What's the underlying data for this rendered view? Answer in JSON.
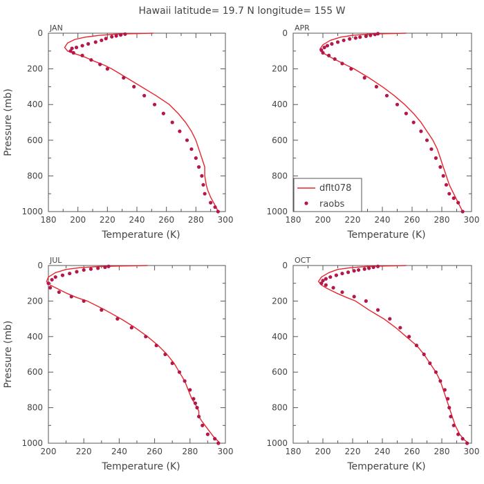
{
  "figure": {
    "title": "Hawaii  latitude= 19.7 N longitude= 155 W"
  },
  "colors": {
    "model_line": "#e8232a",
    "obs_points": "#b5174b",
    "axis": "#555555",
    "text": "#444444"
  },
  "legend": {
    "placement": "lower-left of APR panel",
    "entries": [
      "dflt078",
      "raobs"
    ]
  },
  "chart_data": [
    {
      "type": "line",
      "panel": "JAN",
      "title": "JAN",
      "xlabel": "Temperature (K)",
      "ylabel": "Pressure (mb)",
      "xlim": [
        180,
        300
      ],
      "ylim": [
        1000,
        0
      ],
      "y_inverted": true,
      "xticks": [
        180,
        200,
        220,
        240,
        260,
        280,
        300
      ],
      "yticks": [
        0,
        200,
        400,
        600,
        800,
        1000
      ],
      "grid": false,
      "series": [
        {
          "name": "dflt078",
          "style": "line",
          "x": [
            251,
            235,
            225,
            215,
            205,
            198,
            193,
            191,
            193,
            198,
            205,
            212,
            218,
            223,
            233,
            243,
            253,
            262,
            268,
            273,
            277,
            280,
            282,
            284,
            286,
            286,
            287,
            288,
            290,
            292,
            294,
            295
          ],
          "y": [
            0,
            3,
            6,
            12,
            22,
            35,
            55,
            80,
            100,
            115,
            135,
            160,
            180,
            200,
            250,
            300,
            350,
            400,
            450,
            500,
            550,
            600,
            650,
            700,
            750,
            800,
            850,
            880,
            920,
            950,
            980,
            1000
          ]
        },
        {
          "name": "raobs",
          "style": "scatter",
          "x": [
            232,
            229,
            226,
            223,
            219,
            216,
            212,
            207,
            203,
            199,
            196,
            195,
            197,
            203,
            209,
            215,
            220,
            231,
            238,
            245,
            252,
            258,
            264,
            269,
            274,
            277,
            280,
            282,
            284,
            285,
            286,
            290,
            293,
            295
          ],
          "y": [
            5,
            10,
            15,
            20,
            30,
            40,
            50,
            60,
            70,
            80,
            85,
            100,
            110,
            125,
            150,
            175,
            200,
            250,
            300,
            350,
            400,
            450,
            500,
            550,
            600,
            650,
            700,
            750,
            800,
            850,
            900,
            950,
            975,
            1000
          ]
        }
      ]
    },
    {
      "type": "line",
      "panel": "APR",
      "title": "APR",
      "xlabel": "Temperature (K)",
      "ylabel": "",
      "xlim": [
        180,
        300
      ],
      "ylim": [
        1000,
        0
      ],
      "y_inverted": true,
      "xticks": [
        180,
        200,
        220,
        240,
        260,
        280,
        300
      ],
      "yticks": [
        0,
        200,
        400,
        600,
        800,
        1000
      ],
      "grid": false,
      "series": [
        {
          "name": "dflt078",
          "style": "line",
          "x": [
            256,
            240,
            230,
            220,
            212,
            205,
            200,
            198,
            200,
            204,
            210,
            216,
            221,
            231,
            240,
            248,
            255,
            261,
            266,
            270,
            274,
            277,
            279,
            281,
            283,
            285,
            288,
            291,
            294
          ],
          "y": [
            0,
            3,
            6,
            12,
            22,
            40,
            65,
            90,
            110,
            130,
            155,
            180,
            200,
            250,
            300,
            350,
            400,
            450,
            500,
            550,
            600,
            650,
            700,
            750,
            800,
            850,
            900,
            950,
            1000
          ]
        },
        {
          "name": "raobs",
          "style": "scatter",
          "x": [
            237,
            235,
            232,
            229,
            225,
            222,
            218,
            214,
            210,
            206,
            203,
            201,
            199,
            200,
            204,
            208,
            213,
            219,
            228,
            236,
            243,
            250,
            256,
            261,
            266,
            270,
            273,
            276,
            279,
            281,
            283,
            285,
            288,
            291,
            294
          ],
          "y": [
            3,
            7,
            12,
            17,
            22,
            27,
            32,
            40,
            50,
            60,
            70,
            80,
            95,
            110,
            125,
            145,
            170,
            200,
            250,
            300,
            350,
            400,
            450,
            500,
            550,
            600,
            650,
            700,
            750,
            800,
            850,
            900,
            925,
            950,
            1000
          ]
        }
      ]
    },
    {
      "type": "line",
      "panel": "JUL",
      "title": "JUL",
      "xlabel": "Temperature (K)",
      "ylabel": "Pressure (mb)",
      "xlim": [
        200,
        300
      ],
      "ylim": [
        1000,
        0
      ],
      "y_inverted": true,
      "xticks": [
        200,
        220,
        240,
        260,
        280,
        300
      ],
      "yticks": [
        0,
        200,
        400,
        600,
        800,
        1000
      ],
      "grid": false,
      "series": [
        {
          "name": "dflt078",
          "style": "line",
          "x": [
            256,
            240,
            228,
            218,
            210,
            204,
            200,
            199,
            201,
            205,
            210,
            216,
            222,
            232,
            241,
            249,
            256,
            262,
            267,
            271,
            274,
            277,
            279,
            281,
            283,
            284,
            285,
            285,
            287,
            290,
            293,
            297
          ],
          "y": [
            0,
            3,
            6,
            12,
            22,
            40,
            65,
            90,
            110,
            130,
            155,
            180,
            200,
            250,
            300,
            350,
            400,
            450,
            500,
            550,
            600,
            650,
            700,
            750,
            780,
            800,
            820,
            850,
            880,
            920,
            960,
            1000
          ]
        },
        {
          "name": "raobs",
          "style": "scatter",
          "x": [
            234,
            232,
            228,
            224,
            220,
            216,
            212,
            208,
            204,
            202,
            200,
            201,
            206,
            213,
            220,
            230,
            239,
            247,
            255,
            261,
            266,
            270,
            274,
            277,
            280,
            282,
            283,
            284,
            285,
            287,
            290,
            294,
            296
          ],
          "y": [
            5,
            10,
            15,
            20,
            25,
            35,
            45,
            55,
            65,
            80,
            100,
            125,
            150,
            175,
            200,
            250,
            300,
            350,
            400,
            450,
            500,
            550,
            600,
            650,
            700,
            750,
            775,
            800,
            850,
            900,
            950,
            975,
            1000
          ]
        }
      ]
    },
    {
      "type": "line",
      "panel": "OCT",
      "title": "OCT",
      "xlabel": "Temperature (K)",
      "ylabel": "",
      "xlim": [
        180,
        300
      ],
      "ylim": [
        1000,
        0
      ],
      "y_inverted": true,
      "xticks": [
        180,
        200,
        220,
        240,
        260,
        280,
        300
      ],
      "yticks": [
        0,
        200,
        400,
        600,
        800,
        1000
      ],
      "grid": false,
      "series": [
        {
          "name": "dflt078",
          "style": "line",
          "x": [
            256,
            240,
            229,
            219,
            210,
            204,
            199,
            197,
            199,
            203,
            209,
            216,
            222,
            231,
            241,
            249,
            256,
            263,
            268,
            272,
            276,
            279,
            281,
            283,
            285,
            287,
            289,
            292,
            295,
            298
          ],
          "y": [
            0,
            3,
            6,
            12,
            22,
            40,
            65,
            90,
            110,
            130,
            155,
            180,
            200,
            250,
            300,
            350,
            400,
            450,
            500,
            550,
            600,
            650,
            700,
            750,
            800,
            850,
            900,
            950,
            980,
            1000
          ]
        },
        {
          "name": "raobs",
          "style": "scatter",
          "x": [
            237,
            234,
            231,
            228,
            224,
            221,
            217,
            213,
            209,
            205,
            202,
            200,
            199,
            202,
            207,
            213,
            221,
            229,
            237,
            245,
            252,
            258,
            263,
            268,
            272,
            276,
            279,
            282,
            284,
            285,
            286,
            288,
            291,
            294,
            297
          ],
          "y": [
            5,
            10,
            15,
            20,
            25,
            30,
            38,
            45,
            55,
            65,
            75,
            85,
            100,
            110,
            125,
            150,
            175,
            200,
            250,
            300,
            350,
            400,
            450,
            500,
            550,
            600,
            650,
            700,
            750,
            800,
            850,
            900,
            950,
            975,
            1000
          ]
        }
      ]
    }
  ]
}
